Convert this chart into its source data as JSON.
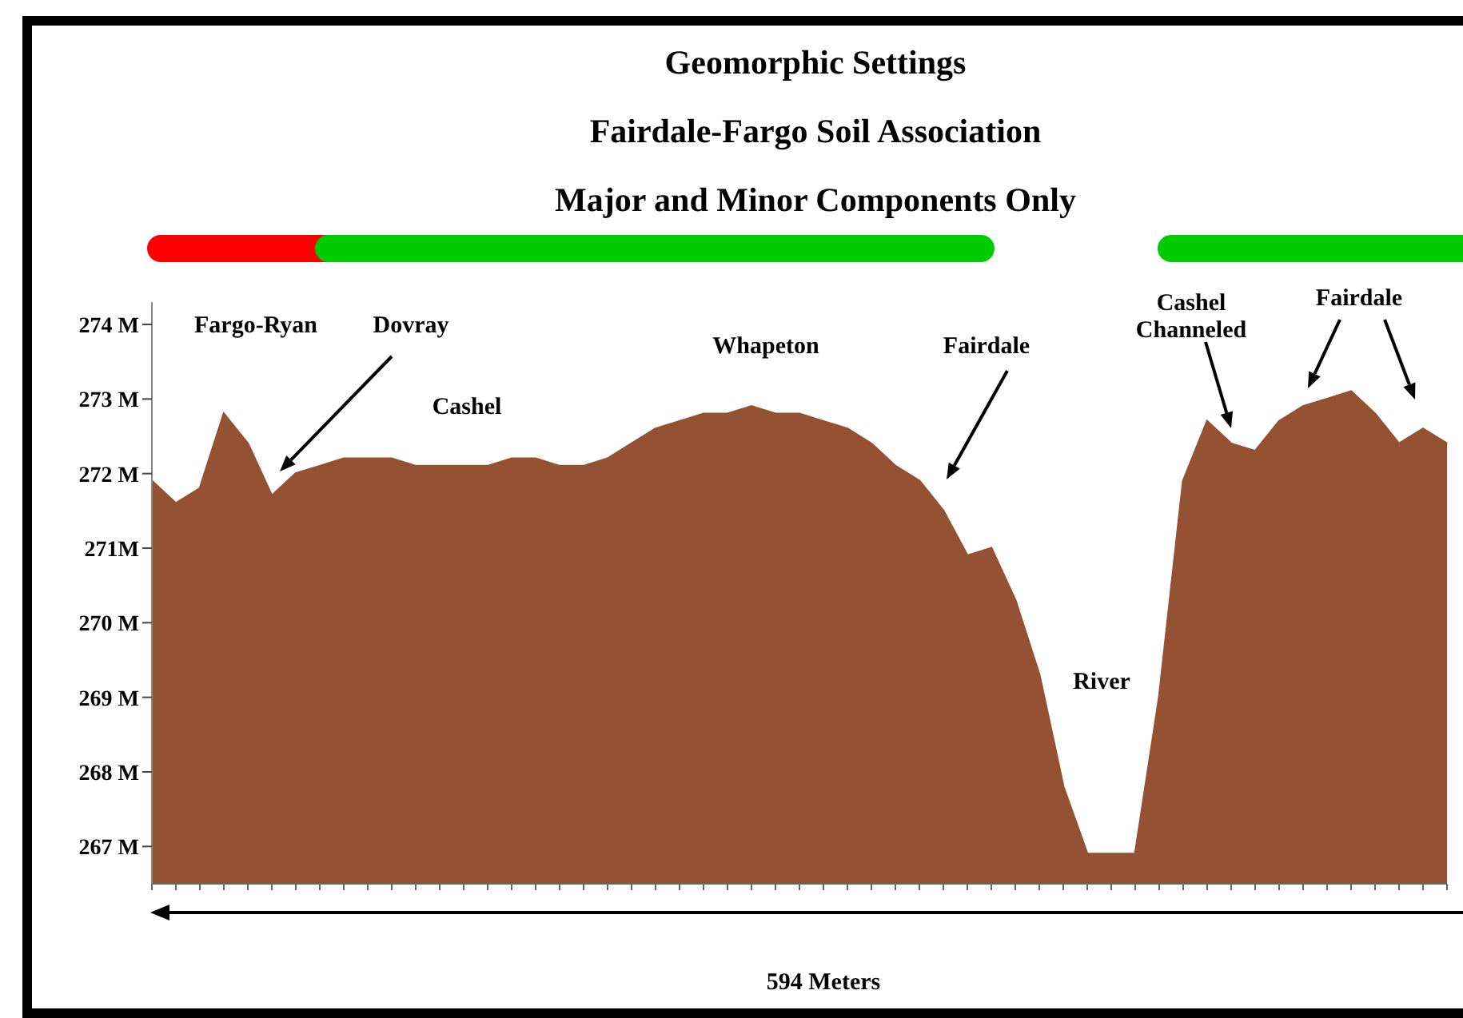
{
  "chart_data": {
    "type": "area",
    "title": "Geomorphic Settings",
    "subtitle": "Fairdale-Fargo Soil Association\nMajor and Minor Components Only",
    "xlabel": "594 Meters",
    "annotations": [
      "Fargo-Ryan",
      "Dovray",
      "Cashel",
      "Whapeton",
      "Fairdale",
      "River",
      "Cashel Channeled",
      "Fairdale"
    ],
    "categories": [
      null,
      null,
      null,
      null,
      null,
      null,
      null,
      null,
      null,
      null,
      null,
      null,
      null,
      null,
      null,
      null,
      null,
      null,
      null,
      null,
      null,
      null,
      null,
      null,
      null,
      null,
      null,
      null,
      null,
      null,
      null,
      null,
      null,
      null,
      null,
      null,
      null,
      null,
      null,
      null,
      null,
      null,
      null,
      null,
      null,
      null,
      null,
      null,
      null,
      null,
      null,
      null,
      null,
      null,
      null
    ],
    "series": [
      {
        "color": "#955232",
        "values": [
          271.9,
          271.6,
          271.8,
          272.8,
          272.4,
          271.7,
          272.0,
          272.1,
          272.2,
          272.2,
          272.2,
          272.1,
          272.1,
          272.1,
          272.1,
          272.2,
          272.2,
          272.1,
          272.1,
          272.2,
          272.4,
          272.6,
          272.7,
          272.8,
          272.8,
          272.9,
          272.8,
          272.8,
          272.7,
          272.6,
          272.4,
          272.1,
          271.9,
          271.5,
          270.9,
          271.0,
          270.3,
          269.3,
          267.8,
          266.9,
          266.9,
          266.9,
          269.0,
          271.9,
          272.7,
          272.4,
          272.3,
          272.7,
          272.9,
          273.0,
          273.1,
          272.8,
          272.4,
          272.6,
          272.4
        ]
      }
    ],
    "ylim": [
      266.5,
      274.3
    ],
    "yticks": [
      {
        "value": 267,
        "label": "267 M"
      },
      {
        "value": 268,
        "label": "268 M"
      },
      {
        "value": 269,
        "label": "269 M"
      },
      {
        "value": 270,
        "label": "270 M"
      },
      {
        "value": 271,
        "label": "271M"
      },
      {
        "value": 272,
        "label": "272 M"
      },
      {
        "value": 273,
        "label": "273 M"
      },
      {
        "value": 274,
        "label": "274 M"
      }
    ],
    "tick_labels": "y"
  }
}
